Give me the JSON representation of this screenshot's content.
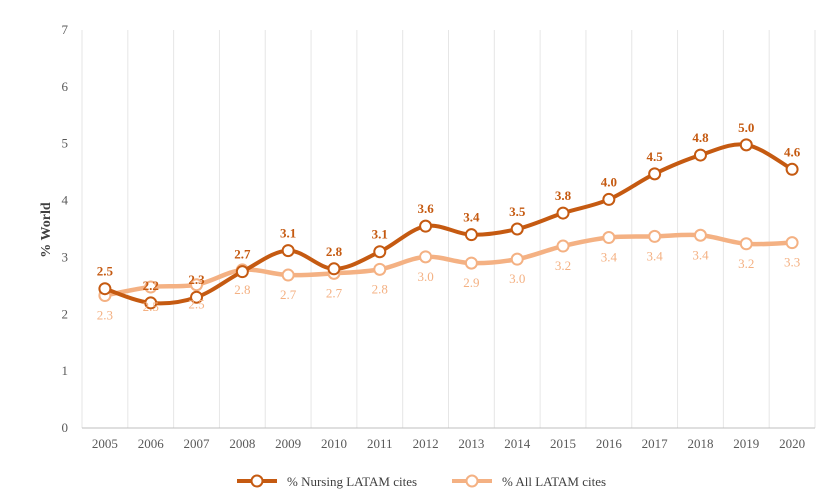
{
  "chart_data": {
    "type": "line",
    "title": "",
    "xlabel": "",
    "ylabel": "% World",
    "ylim": [
      0,
      7
    ],
    "yticks": [
      0,
      1,
      2,
      3,
      4,
      5,
      6,
      7
    ],
    "grid": "vertical",
    "legend_position": "bottom",
    "categories": [
      "2005",
      "2006",
      "2007",
      "2008",
      "2009",
      "2010",
      "2011",
      "2012",
      "2013",
      "2014",
      "2015",
      "2016",
      "2017",
      "2018",
      "2019",
      "2020"
    ],
    "series": [
      {
        "name": "% Nursing LATAM cites",
        "color": "#C55A11",
        "values": [
          2.45,
          2.2,
          2.3,
          2.75,
          3.12,
          2.8,
          3.1,
          3.55,
          3.4,
          3.5,
          3.78,
          4.02,
          4.47,
          4.8,
          4.98,
          4.55
        ],
        "labels": [
          "2.5",
          "2.2",
          "2.3",
          "2.7",
          "3.1",
          "2.8",
          "3.1",
          "3.6",
          "3.4",
          "3.5",
          "3.8",
          "4.0",
          "4.5",
          "4.8",
          "5.0",
          "4.6"
        ]
      },
      {
        "name": "% All LATAM cites",
        "color": "#F4B183",
        "values": [
          2.33,
          2.48,
          2.52,
          2.78,
          2.69,
          2.72,
          2.79,
          3.01,
          2.9,
          2.97,
          3.2,
          3.35,
          3.37,
          3.39,
          3.24,
          3.26
        ],
        "labels": [
          "2.3",
          "2.5",
          "2.5",
          "2.8",
          "2.7",
          "2.7",
          "2.8",
          "3.0",
          "2.9",
          "3.0",
          "3.2",
          "3.4",
          "3.4",
          "3.4",
          "3.2",
          "3.3"
        ]
      }
    ]
  }
}
